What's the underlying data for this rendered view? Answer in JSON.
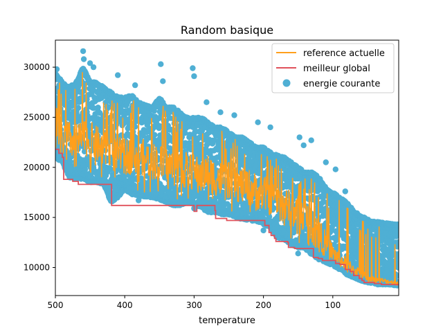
{
  "chart_data": {
    "type": "line",
    "title": "Random basique",
    "xlabel": "temperature",
    "ylabel": "",
    "x_inverted": true,
    "xlim": [
      500,
      5
    ],
    "ylim": [
      7200,
      32700
    ],
    "x_ticks": [
      500,
      400,
      300,
      200,
      100
    ],
    "y_ticks": [
      10000,
      15000,
      20000,
      25000,
      30000
    ],
    "legend_position": "upper right",
    "grid": false,
    "series": [
      {
        "name": "reference actuelle",
        "kind": "line",
        "color": "#ff9f1c",
        "x": [
          500,
          495,
          490,
          485,
          480,
          470,
          460,
          450,
          440,
          430,
          420,
          410,
          400,
          390,
          380,
          370,
          360,
          350,
          340,
          330,
          320,
          310,
          300,
          290,
          280,
          270,
          260,
          250,
          240,
          230,
          220,
          210,
          200,
          190,
          180,
          170,
          160,
          150,
          140,
          130,
          120,
          110,
          100,
          90,
          80,
          70,
          60,
          50,
          40,
          30,
          20,
          10,
          5
        ],
        "values": [
          25000,
          23500,
          22500,
          23000,
          22800,
          22500,
          23000,
          22800,
          22300,
          21800,
          21500,
          21300,
          21000,
          21300,
          21200,
          20900,
          20700,
          20500,
          20200,
          20000,
          19800,
          19700,
          19500,
          19200,
          19500,
          19000,
          18800,
          18700,
          18400,
          18200,
          18000,
          17600,
          17400,
          17000,
          16500,
          16200,
          15900,
          15400,
          15000,
          14200,
          13200,
          12300,
          11500,
          10800,
          10300,
          9800,
          9400,
          9000,
          8800,
          8700,
          8600,
          8500,
          8400
        ]
      },
      {
        "name": "meilleur global",
        "kind": "step",
        "color": "#e0505a",
        "x": [
          500,
          495,
          490,
          488,
          478,
          475,
          470,
          467,
          460,
          422,
          419,
          415,
          305,
          300,
          296,
          270,
          269,
          254,
          253,
          200,
          198,
          192,
          189,
          184,
          182,
          165,
          164,
          160,
          155,
          130,
          128,
          121,
          115,
          98,
          96,
          90,
          82,
          75,
          70,
          62,
          58,
          55,
          45,
          40,
          30,
          5
        ],
        "values": [
          21800,
          21400,
          21000,
          18800,
          18800,
          18600,
          18600,
          18300,
          18300,
          18300,
          16200,
          16200,
          16200,
          15600,
          16200,
          15700,
          14900,
          14900,
          14700,
          14700,
          14200,
          13500,
          13200,
          12900,
          12600,
          12500,
          12000,
          12000,
          11900,
          11900,
          11000,
          10900,
          10700,
          10700,
          10400,
          10300,
          9800,
          9600,
          9200,
          8900,
          8700,
          8500,
          8500,
          8400,
          8300,
          8200
        ]
      },
      {
        "name": "energie courante",
        "kind": "scatter",
        "color": "#4fafd4",
        "band_x": [
          500,
          490,
          480,
          470,
          460,
          450,
          440,
          430,
          420,
          410,
          400,
          390,
          380,
          370,
          360,
          350,
          340,
          330,
          320,
          310,
          300,
          290,
          280,
          270,
          260,
          250,
          240,
          230,
          220,
          210,
          200,
          190,
          180,
          170,
          160,
          150,
          140,
          130,
          120,
          110,
          100,
          90,
          80,
          70,
          60,
          50,
          40,
          30,
          20,
          10,
          5
        ],
        "band_low": [
          21000,
          20500,
          19000,
          18800,
          18800,
          18500,
          18500,
          18300,
          16500,
          17000,
          17800,
          17300,
          17200,
          17000,
          17000,
          16800,
          16500,
          16200,
          16200,
          16500,
          16300,
          16000,
          15500,
          15500,
          15300,
          15300,
          15000,
          14800,
          14700,
          14600,
          14300,
          14000,
          13000,
          12800,
          12300,
          12000,
          11800,
          11300,
          10800,
          10500,
          10200,
          9800,
          9300,
          9000,
          8700,
          8500,
          8400,
          8300,
          8300,
          8200,
          8200
        ],
        "band_high": [
          29500,
          28500,
          28000,
          28500,
          30000,
          28500,
          28500,
          28000,
          27500,
          27000,
          27000,
          27200,
          26500,
          26200,
          26000,
          27000,
          26000,
          26000,
          25500,
          25000,
          25000,
          25000,
          24500,
          24000,
          24000,
          23500,
          23000,
          23000,
          22500,
          22000,
          22000,
          21500,
          21200,
          21000,
          20500,
          20000,
          19500,
          19500,
          19000,
          18000,
          17500,
          17000,
          16500,
          15700,
          15200,
          14800,
          14600,
          14500,
          14400,
          14300,
          14300
        ],
        "outliers": [
          [
            498,
            29800
          ],
          [
            460,
            31600
          ],
          [
            459,
            30800
          ],
          [
            450,
            30400
          ],
          [
            445,
            30000
          ],
          [
            410,
            29200
          ],
          [
            385,
            28200
          ],
          [
            348,
            30300
          ],
          [
            345,
            28600
          ],
          [
            302,
            29900
          ],
          [
            300,
            29100
          ],
          [
            282,
            26500
          ],
          [
            262,
            25500
          ],
          [
            242,
            25200
          ],
          [
            208,
            24500
          ],
          [
            190,
            24000
          ],
          [
            148,
            23000
          ],
          [
            142,
            22200
          ],
          [
            131,
            22700
          ],
          [
            110,
            20500
          ],
          [
            96,
            19800
          ],
          [
            82,
            17600
          ],
          [
            55,
            15000
          ],
          [
            20,
            14400
          ],
          [
            8,
            14300
          ],
          [
            15,
            8300
          ],
          [
            35,
            8300
          ],
          [
            150,
            11400
          ],
          [
            200,
            13700
          ],
          [
            300,
            15900
          ],
          [
            380,
            16700
          ]
        ]
      }
    ]
  }
}
